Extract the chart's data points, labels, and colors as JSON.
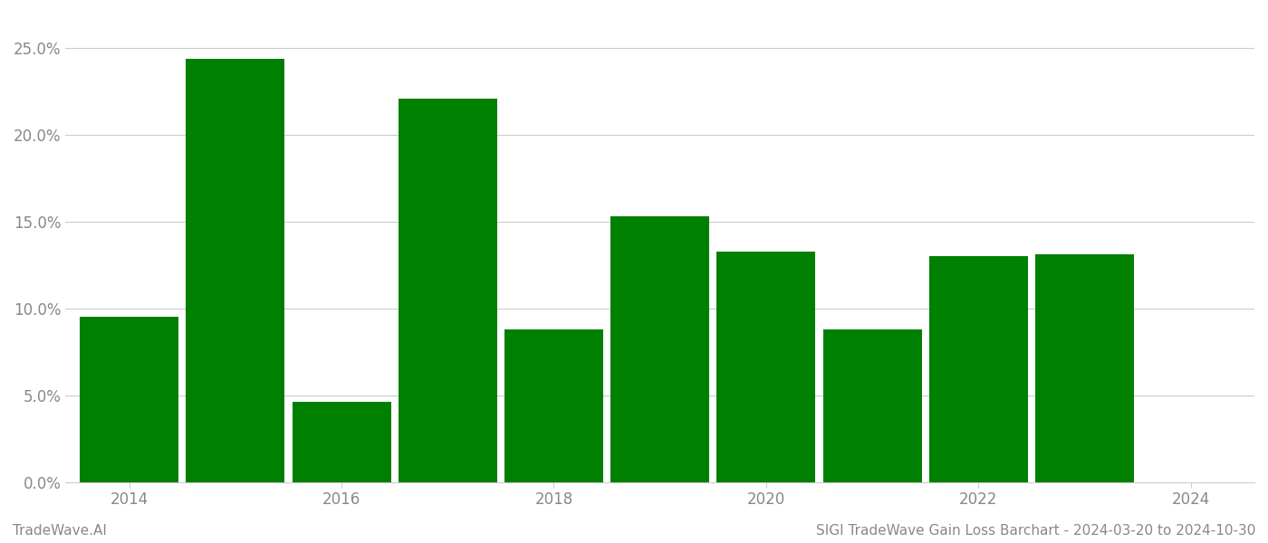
{
  "years": [
    2014,
    2015,
    2016,
    2017,
    2018,
    2019,
    2020,
    2021,
    2022,
    2023
  ],
  "values": [
    0.095,
    0.244,
    0.046,
    0.221,
    0.088,
    0.153,
    0.133,
    0.088,
    0.13,
    0.131
  ],
  "bar_color": "#008000",
  "background_color": "#ffffff",
  "grid_color": "#cccccc",
  "axis_label_color": "#888888",
  "ytick_labels": [
    "0.0%",
    "5.0%",
    "10.0%",
    "15.0%",
    "20.0%",
    "25.0%"
  ],
  "ytick_values": [
    0.0,
    0.05,
    0.1,
    0.15,
    0.2,
    0.25
  ],
  "ylim": [
    0,
    0.27
  ],
  "xtick_positions": [
    2014,
    2016,
    2018,
    2020,
    2022,
    2024
  ],
  "xtick_labels": [
    "2014",
    "2016",
    "2018",
    "2020",
    "2022",
    "2024"
  ],
  "xlim": [
    2013.4,
    2024.6
  ],
  "footer_left": "TradeWave.AI",
  "footer_right": "SIGI TradeWave Gain Loss Barchart - 2024-03-20 to 2024-10-30",
  "footer_color": "#888888",
  "footer_fontsize": 11,
  "bar_width": 0.93
}
